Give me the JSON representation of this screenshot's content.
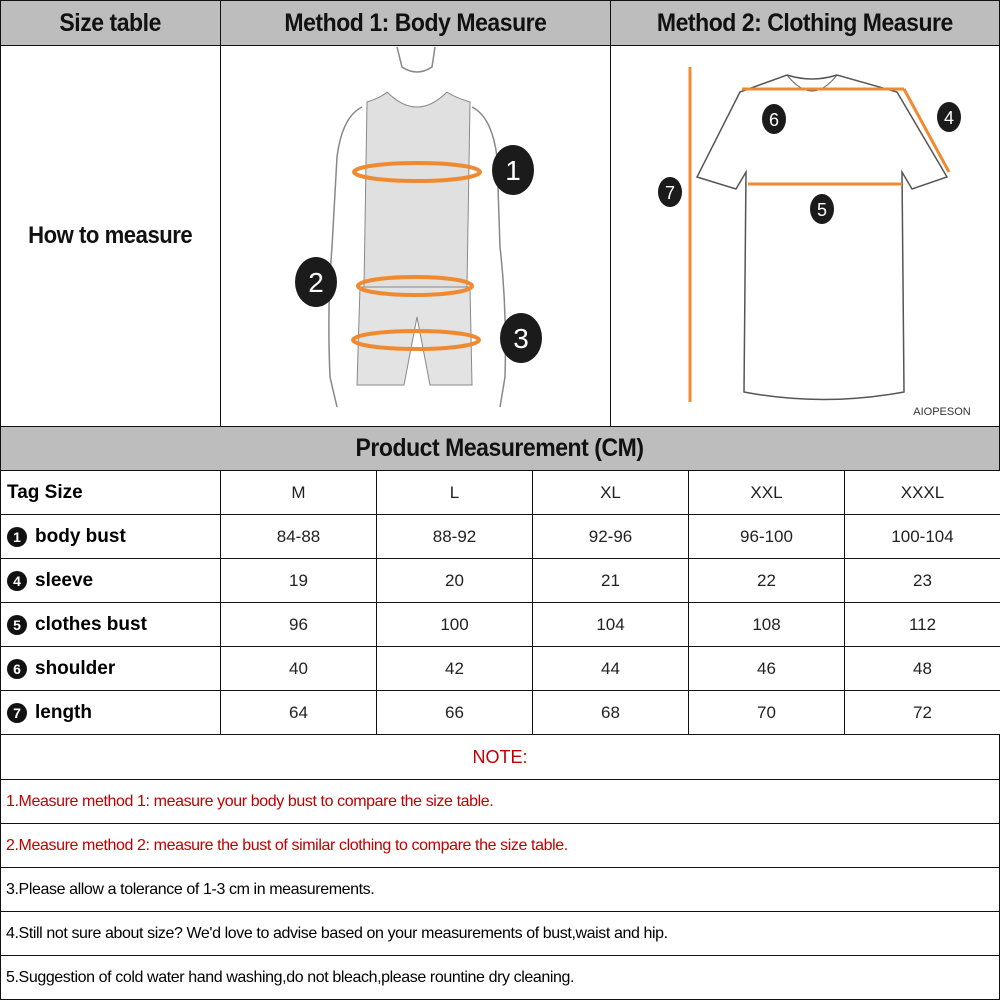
{
  "header": {
    "col1": "Size table",
    "col2": "Method 1: Body  Measure",
    "col3": "Method 2: Clothing Measure"
  },
  "how_to_measure": "How to measure",
  "body_markers": [
    "1",
    "2",
    "3"
  ],
  "clothing_markers": [
    "4",
    "5",
    "6",
    "7"
  ],
  "brand_watermark": "AIOPESON",
  "measurement_title": "Product Measurement (CM)",
  "table": {
    "header": {
      "label": "Tag Size",
      "sizes": [
        "M",
        "L",
        "XL",
        "XXL",
        "XXXL"
      ]
    },
    "rows": [
      {
        "marker": "1",
        "label": "body bust",
        "values": [
          "84-88",
          "88-92",
          "92-96",
          "96-100",
          "100-104"
        ]
      },
      {
        "marker": "4",
        "label": "sleeve",
        "values": [
          "19",
          "20",
          "21",
          "22",
          "23"
        ]
      },
      {
        "marker": "5",
        "label": "clothes bust",
        "values": [
          "96",
          "100",
          "104",
          "108",
          "112"
        ]
      },
      {
        "marker": "6",
        "label": "shoulder",
        "values": [
          "40",
          "42",
          "44",
          "46",
          "48"
        ]
      },
      {
        "marker": "7",
        "label": "length",
        "values": [
          "64",
          "66",
          "68",
          "70",
          "72"
        ]
      }
    ]
  },
  "note_title": "NOTE:",
  "notes": [
    "1.Measure method 1: measure your body bust to compare the size table.",
    "2.Measure method 2: measure the bust of similar clothing to compare the size table.",
    "3.Please allow a tolerance of 1-3 cm in measurements.",
    "4.Still not sure about size? We'd love to advise based on your measurements of bust,waist and hip.",
    "5.Suggestion of cold water hand washing,do not bleach,please rountine dry cleaning."
  ],
  "colors": {
    "header_bg": "#bdbdbd",
    "note_red": "#c00000",
    "measure_line": "#f08a30"
  }
}
